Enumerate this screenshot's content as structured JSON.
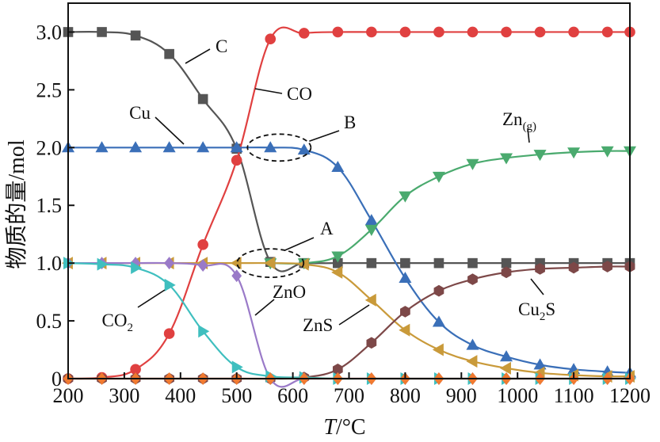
{
  "chart_data": {
    "type": "line",
    "xlabel": {
      "var": "T",
      "unit": "/°C"
    },
    "ylabel": "物质的量/mol",
    "xlim": [
      200,
      1200
    ],
    "ylim": [
      0,
      3.25
    ],
    "xticks": [
      200,
      300,
      400,
      500,
      600,
      700,
      800,
      900,
      1000,
      1100,
      1200
    ],
    "yticks": [
      0,
      0.5,
      1.0,
      1.5,
      2.0,
      2.5,
      3.0
    ],
    "ytick_labels": [
      "0",
      "0.5",
      "1.0",
      "1.5",
      "2.0",
      "2.5",
      "3.0"
    ],
    "grid": false,
    "series": [
      {
        "name": "C",
        "color": "#555555",
        "marker": "square",
        "x": [
          200,
          260,
          320,
          380,
          440,
          500,
          560,
          620,
          680,
          740,
          800,
          860,
          920,
          980,
          1040,
          1100,
          1160,
          1200
        ],
        "y": [
          3.0,
          3.0,
          2.97,
          2.81,
          2.42,
          1.99,
          1.01,
          1.0,
          1.0,
          1.0,
          1.0,
          1.0,
          1.0,
          1.0,
          1.0,
          1.0,
          1.0,
          1.0
        ],
        "label": "C"
      },
      {
        "name": "CO",
        "color": "#e04040",
        "marker": "circle",
        "x": [
          200,
          260,
          320,
          380,
          440,
          500,
          560,
          620,
          680,
          740,
          800,
          860,
          920,
          980,
          1040,
          1100,
          1160,
          1200
        ],
        "y": [
          0.0,
          0.01,
          0.08,
          0.39,
          1.16,
          1.89,
          2.94,
          2.99,
          3.0,
          3.0,
          3.0,
          3.0,
          3.0,
          3.0,
          3.0,
          3.0,
          3.0,
          3.0
        ],
        "label": "CO"
      },
      {
        "name": "Cu",
        "color": "#3a6fb8",
        "marker": "triangle-up",
        "x": [
          200,
          260,
          320,
          380,
          440,
          500,
          560,
          620,
          680,
          740,
          800,
          860,
          920,
          980,
          1040,
          1100,
          1160,
          1200
        ],
        "y": [
          2.0,
          2.0,
          2.0,
          2.0,
          2.0,
          2.0,
          2.0,
          1.98,
          1.83,
          1.37,
          0.87,
          0.49,
          0.29,
          0.19,
          0.12,
          0.08,
          0.06,
          0.05
        ],
        "label": "Cu"
      },
      {
        "name": "Zn(g)",
        "color": "#4aaa6e",
        "marker": "triangle-down",
        "x": [
          560,
          620,
          680,
          740,
          800,
          860,
          920,
          980,
          1040,
          1100,
          1160,
          1200
        ],
        "y": [
          1.0,
          1.0,
          1.06,
          1.29,
          1.58,
          1.75,
          1.86,
          1.91,
          1.94,
          1.96,
          1.97,
          1.97
        ],
        "label_main": "Zn",
        "label_sub": "(g)"
      },
      {
        "name": "ZnS",
        "color": "#c99a3a",
        "marker": "triangle-left",
        "x": [
          200,
          260,
          320,
          380,
          440,
          500,
          560,
          620,
          680,
          740,
          800,
          860,
          920,
          980,
          1040,
          1100,
          1160,
          1200
        ],
        "y": [
          1.0,
          1.0,
          1.0,
          1.0,
          1.0,
          1.0,
          1.0,
          0.99,
          0.92,
          0.68,
          0.42,
          0.25,
          0.15,
          0.09,
          0.05,
          0.03,
          0.02,
          0.02
        ],
        "label": "ZnS"
      },
      {
        "name": "Cu2S",
        "color": "#7d4848",
        "marker": "hexagon",
        "x": [
          200,
          260,
          320,
          380,
          440,
          500,
          560,
          620,
          680,
          740,
          800,
          860,
          920,
          980,
          1040,
          1100,
          1160,
          1200
        ],
        "y": [
          0.0,
          0.0,
          0.0,
          0.0,
          0.0,
          0.0,
          0.0,
          0.01,
          0.08,
          0.31,
          0.58,
          0.76,
          0.86,
          0.92,
          0.95,
          0.96,
          0.97,
          0.97
        ],
        "label_main": "Cu",
        "label_sub": "2",
        "label_tail": "S"
      },
      {
        "name": "ZnO",
        "color": "#9a7ac8",
        "marker": "diamond",
        "x": [
          200,
          260,
          320,
          380,
          440,
          500,
          560,
          620,
          680,
          740,
          800,
          860,
          920,
          980,
          1040,
          1100,
          1160,
          1200
        ],
        "y": [
          1.0,
          1.0,
          1.0,
          1.0,
          0.98,
          0.89,
          0.0,
          0.0,
          0.0,
          0.0,
          0.0,
          0.0,
          0.0,
          0.0,
          0.0,
          0.0,
          0.0,
          0.0
        ],
        "label": "ZnO"
      },
      {
        "name": "CO2",
        "color": "#3fbfbf",
        "marker": "triangle-right",
        "x": [
          200,
          260,
          320,
          380,
          440,
          500,
          560,
          620,
          680,
          740,
          800,
          860,
          920,
          980,
          1040,
          1100,
          1160,
          1200
        ],
        "y": [
          1.0,
          0.99,
          0.96,
          0.81,
          0.41,
          0.1,
          0.02,
          0.01,
          0.0,
          0.0,
          0.0,
          0.0,
          0.0,
          0.0,
          0.0,
          0.0,
          0.0,
          0.0
        ],
        "label_main": "CO",
        "label_sub": "2"
      },
      {
        "name": "base",
        "color": "#f07a30",
        "marker": "diamond",
        "x": [
          200,
          260,
          320,
          380,
          440,
          500,
          560,
          620,
          680,
          740,
          800,
          860,
          920,
          980,
          1040,
          1100,
          1160,
          1200
        ],
        "y": [
          0.0,
          0.0,
          0.0,
          0.0,
          0.0,
          0.0,
          0.0,
          0.0,
          0.0,
          0.0,
          0.0,
          0.0,
          0.0,
          0.0,
          0.0,
          0.0,
          0.0,
          0.0
        ]
      }
    ],
    "annotations": [
      {
        "text": "A",
        "type": "ellipse-callout",
        "cx": 560,
        "cy": 1.0
      },
      {
        "text": "B",
        "type": "ellipse-callout",
        "cx": 570,
        "cy": 2.0
      }
    ]
  }
}
